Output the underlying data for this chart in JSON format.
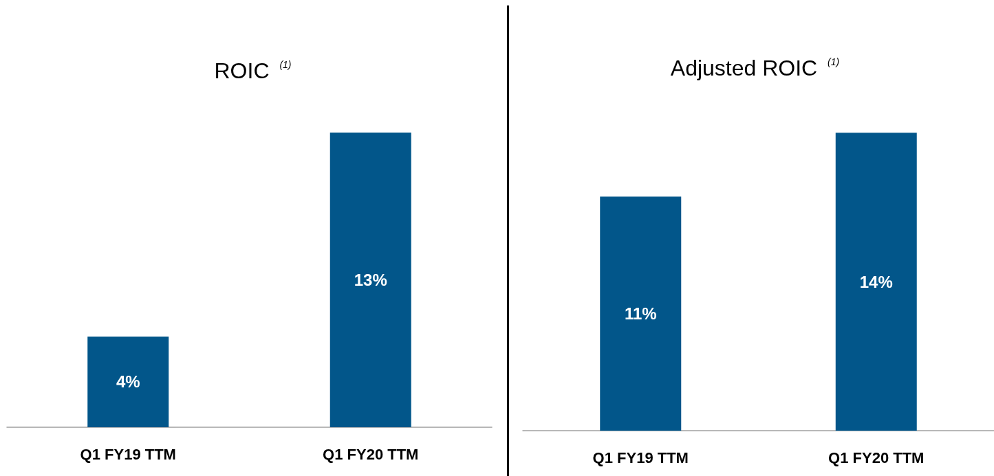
{
  "chart_data": [
    {
      "type": "bar",
      "title": "ROIC $^{(1)}$",
      "categories": [
        "Q1 FY19 TTM",
        "Q1 FY20 TTM"
      ],
      "values": [
        4,
        13
      ],
      "value_labels": [
        "4%",
        "13%"
      ],
      "color": "#02568a"
    },
    {
      "type": "bar",
      "title": "Adjusted ROIC $^{(1)}$",
      "categories": [
        "Q1 FY19 TTM",
        "Q1 FY20 TTM"
      ],
      "values": [
        11,
        14
      ],
      "value_labels": [
        "11%",
        "14%"
      ],
      "color": "#02568a"
    }
  ]
}
